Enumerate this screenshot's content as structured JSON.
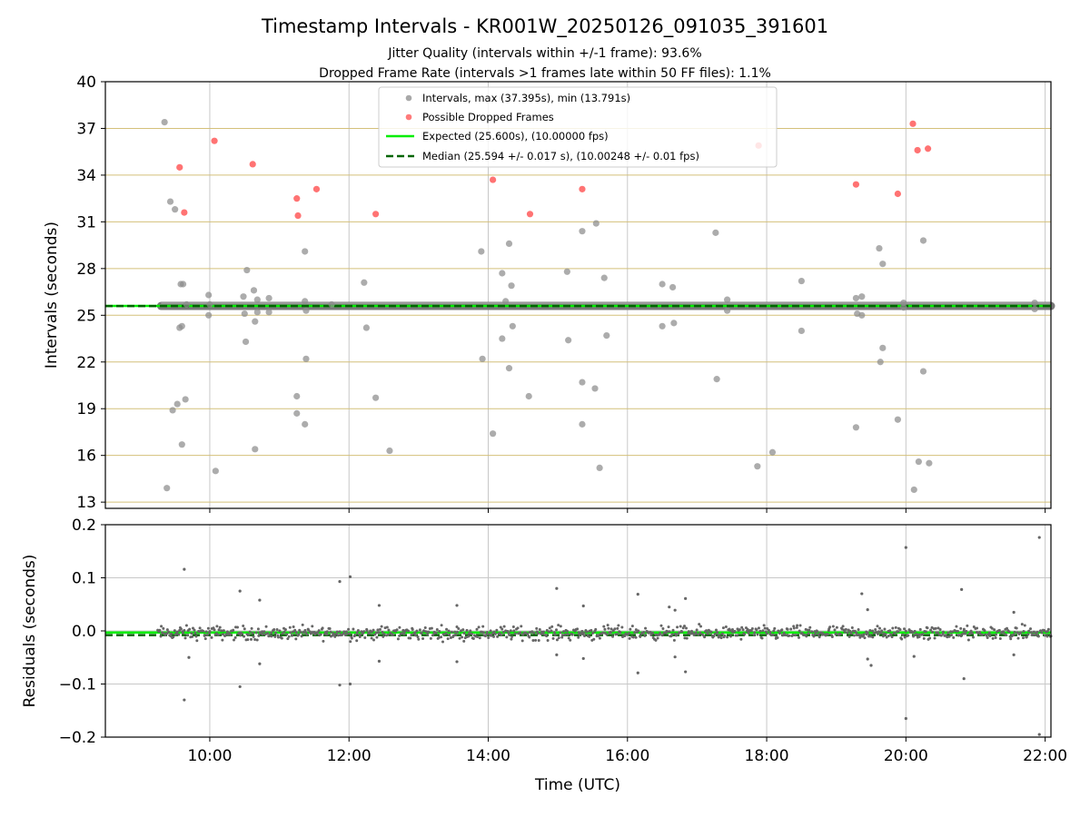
{
  "figure": {
    "title": "Timestamp Intervals - KR001W_20250126_091035_391601",
    "subtitle_1": "Jitter Quality (intervals within +/-1 frame): 93.6%",
    "subtitle_2": "Dropped Frame Rate (intervals >1 frames late within 50 FF files): 1.1%",
    "xlabel": "Time (UTC)"
  },
  "colors": {
    "intervals": "#8c8c8c",
    "dropped": "#ff5a5a",
    "expected": "#00ee00",
    "median": "#006400",
    "hgrid": "#d4c07a",
    "vgrid": "#c8c8c8",
    "residuals": "#666666"
  },
  "chart_data": [
    {
      "type": "scatter",
      "ylabel": "Intervals (seconds)",
      "xlabel": "",
      "xlim": [
        "08:30",
        "22:05"
      ],
      "ylim": [
        12.6,
        40
      ],
      "x_ticks": [
        "10:00",
        "12:00",
        "14:00",
        "16:00",
        "18:00",
        "20:00",
        "22:00"
      ],
      "y_ticks": [
        13,
        16,
        19,
        22,
        25,
        28,
        31,
        34,
        37,
        40
      ],
      "grid": "on",
      "legend_position": "top-center",
      "legend": {
        "intervals": "Intervals, max (37.395s), min (13.791s)",
        "dropped": "Possible Dropped Frames",
        "expected": "Expected (25.600s), (10.00000 fps)",
        "median": "Median (25.594 +/- 0.017 s), (10.00248 +/- 0.01 fps)"
      },
      "expected_value": 25.6,
      "median_value": 25.594,
      "main_band": {
        "x_start": "09:18",
        "x_end": "22:05",
        "value": 25.6
      },
      "series": [
        {
          "name": "Intervals, max (37.395s), min (13.791s)",
          "points": [
            [
              "09:21",
              37.4
            ],
            [
              "09:23",
              13.9
            ],
            [
              "09:26",
              32.3
            ],
            [
              "09:28",
              18.9
            ],
            [
              "09:30",
              31.8
            ],
            [
              "09:32",
              19.3
            ],
            [
              "09:34",
              24.2
            ],
            [
              "09:35",
              27.0
            ],
            [
              "09:36",
              16.7
            ],
            [
              "09:36",
              24.3
            ],
            [
              "09:37",
              27.0
            ],
            [
              "09:39",
              19.6
            ],
            [
              "09:40",
              25.7
            ],
            [
              "09:59",
              26.3
            ],
            [
              "09:59",
              25.0
            ],
            [
              "10:00",
              25.7
            ],
            [
              "10:05",
              15.0
            ],
            [
              "10:29",
              26.2
            ],
            [
              "10:30",
              25.1
            ],
            [
              "10:31",
              23.3
            ],
            [
              "10:32",
              27.9
            ],
            [
              "10:38",
              26.6
            ],
            [
              "10:39",
              24.6
            ],
            [
              "10:39",
              16.4
            ],
            [
              "10:41",
              26.0
            ],
            [
              "10:41",
              25.2
            ],
            [
              "10:51",
              26.1
            ],
            [
              "10:51",
              25.2
            ],
            [
              "11:15",
              19.8
            ],
            [
              "11:15",
              18.7
            ],
            [
              "11:22",
              29.1
            ],
            [
              "11:22",
              25.9
            ],
            [
              "11:23",
              22.2
            ],
            [
              "11:23",
              25.3
            ],
            [
              "11:22",
              18.0
            ],
            [
              "11:45",
              25.7
            ],
            [
              "12:13",
              27.1
            ],
            [
              "12:15",
              24.2
            ],
            [
              "12:23",
              19.7
            ],
            [
              "12:35",
              16.3
            ],
            [
              "13:54",
              29.1
            ],
            [
              "13:55",
              22.2
            ],
            [
              "14:04",
              17.4
            ],
            [
              "14:12",
              27.7
            ],
            [
              "14:12",
              23.5
            ],
            [
              "14:15",
              25.9
            ],
            [
              "14:18",
              21.6
            ],
            [
              "14:18",
              29.6
            ],
            [
              "14:20",
              26.9
            ],
            [
              "14:21",
              24.3
            ],
            [
              "14:35",
              19.8
            ],
            [
              "15:08",
              27.8
            ],
            [
              "15:09",
              23.4
            ],
            [
              "15:21",
              30.4
            ],
            [
              "15:21",
              20.7
            ],
            [
              "15:21",
              18.0
            ],
            [
              "15:32",
              20.3
            ],
            [
              "15:33",
              30.9
            ],
            [
              "15:36",
              15.2
            ],
            [
              "15:40",
              27.4
            ],
            [
              "15:42",
              23.7
            ],
            [
              "16:30",
              27.0
            ],
            [
              "16:30",
              24.3
            ],
            [
              "16:39",
              26.8
            ],
            [
              "16:40",
              24.5
            ],
            [
              "17:16",
              30.3
            ],
            [
              "17:17",
              20.9
            ],
            [
              "17:26",
              26.0
            ],
            [
              "17:26",
              25.3
            ],
            [
              "17:52",
              15.3
            ],
            [
              "18:05",
              16.2
            ],
            [
              "18:30",
              27.2
            ],
            [
              "18:30",
              24.0
            ],
            [
              "19:17",
              17.8
            ],
            [
              "19:17",
              26.1
            ],
            [
              "19:18",
              25.1
            ],
            [
              "19:22",
              26.2
            ],
            [
              "19:22",
              25.0
            ],
            [
              "19:37",
              29.3
            ],
            [
              "19:38",
              22.0
            ],
            [
              "19:40",
              28.3
            ],
            [
              "19:40",
              22.9
            ],
            [
              "19:53",
              18.3
            ],
            [
              "19:58",
              25.8
            ],
            [
              "19:58",
              25.5
            ],
            [
              "20:07",
              13.8
            ],
            [
              "20:11",
              15.6
            ],
            [
              "20:15",
              29.8
            ],
            [
              "20:15",
              21.4
            ],
            [
              "20:20",
              15.5
            ],
            [
              "21:51",
              25.8
            ],
            [
              "21:51",
              25.4
            ]
          ]
        },
        {
          "name": "Possible Dropped Frames",
          "points": [
            [
              "09:34",
              34.5
            ],
            [
              "09:38",
              31.6
            ],
            [
              "10:04",
              36.2
            ],
            [
              "10:37",
              34.7
            ],
            [
              "11:15",
              32.5
            ],
            [
              "11:16",
              31.4
            ],
            [
              "11:32",
              33.1
            ],
            [
              "12:23",
              31.5
            ],
            [
              "14:04",
              33.7
            ],
            [
              "14:36",
              31.5
            ],
            [
              "15:21",
              33.1
            ],
            [
              "17:53",
              35.9
            ],
            [
              "19:17",
              33.4
            ],
            [
              "19:53",
              32.8
            ],
            [
              "20:06",
              37.3
            ],
            [
              "20:10",
              35.6
            ],
            [
              "20:19",
              35.7
            ]
          ]
        }
      ]
    },
    {
      "type": "scatter",
      "ylabel": "Residuals (seconds)",
      "xlabel": "Time (UTC)",
      "xlim": [
        "08:30",
        "22:05"
      ],
      "ylim": [
        -0.2,
        0.2
      ],
      "x_ticks": [
        "10:00",
        "12:00",
        "14:00",
        "16:00",
        "18:00",
        "20:00",
        "22:00"
      ],
      "y_ticks": [
        "0.2",
        "0.1",
        "0.0",
        "−0.1",
        "−0.2"
      ],
      "y_tick_values": [
        0.2,
        0.1,
        0,
        -0.1,
        -0.2
      ],
      "grid": "on",
      "expected_value": -0.003,
      "median_value": -0.008,
      "noise": {
        "x_start": "09:15",
        "x_end": "22:05",
        "center": -0.004,
        "spread": 0.012
      },
      "series": [
        {
          "name": "",
          "points": [
            [
              "09:38",
              0.116
            ],
            [
              "09:38",
              -0.13
            ],
            [
              "09:42",
              -0.05
            ],
            [
              "10:26",
              0.075
            ],
            [
              "10:26",
              -0.105
            ],
            [
              "10:43",
              0.058
            ],
            [
              "10:43",
              -0.062
            ],
            [
              "11:52",
              0.093
            ],
            [
              "11:52",
              -0.102
            ],
            [
              "12:01",
              0.102
            ],
            [
              "12:01",
              -0.1
            ],
            [
              "12:26",
              0.048
            ],
            [
              "12:26",
              -0.057
            ],
            [
              "13:33",
              0.048
            ],
            [
              "13:33",
              -0.058
            ],
            [
              "14:59",
              0.08
            ],
            [
              "14:59",
              -0.045
            ],
            [
              "15:22",
              0.047
            ],
            [
              "15:22",
              -0.052
            ],
            [
              "16:09",
              0.069
            ],
            [
              "16:09",
              -0.079
            ],
            [
              "16:36",
              0.045
            ],
            [
              "16:41",
              0.039
            ],
            [
              "16:41",
              -0.049
            ],
            [
              "16:50",
              0.061
            ],
            [
              "16:50",
              -0.077
            ],
            [
              "19:22",
              0.07
            ],
            [
              "19:27",
              0.04
            ],
            [
              "19:27",
              -0.053
            ],
            [
              "19:30",
              -0.065
            ],
            [
              "20:00",
              0.157
            ],
            [
              "20:00",
              -0.165
            ],
            [
              "20:07",
              -0.048
            ],
            [
              "20:48",
              0.078
            ],
            [
              "20:50",
              -0.09
            ],
            [
              "21:55",
              0.176
            ],
            [
              "21:55",
              -0.195
            ],
            [
              "21:33",
              0.035
            ],
            [
              "21:33",
              -0.045
            ]
          ]
        }
      ]
    }
  ]
}
